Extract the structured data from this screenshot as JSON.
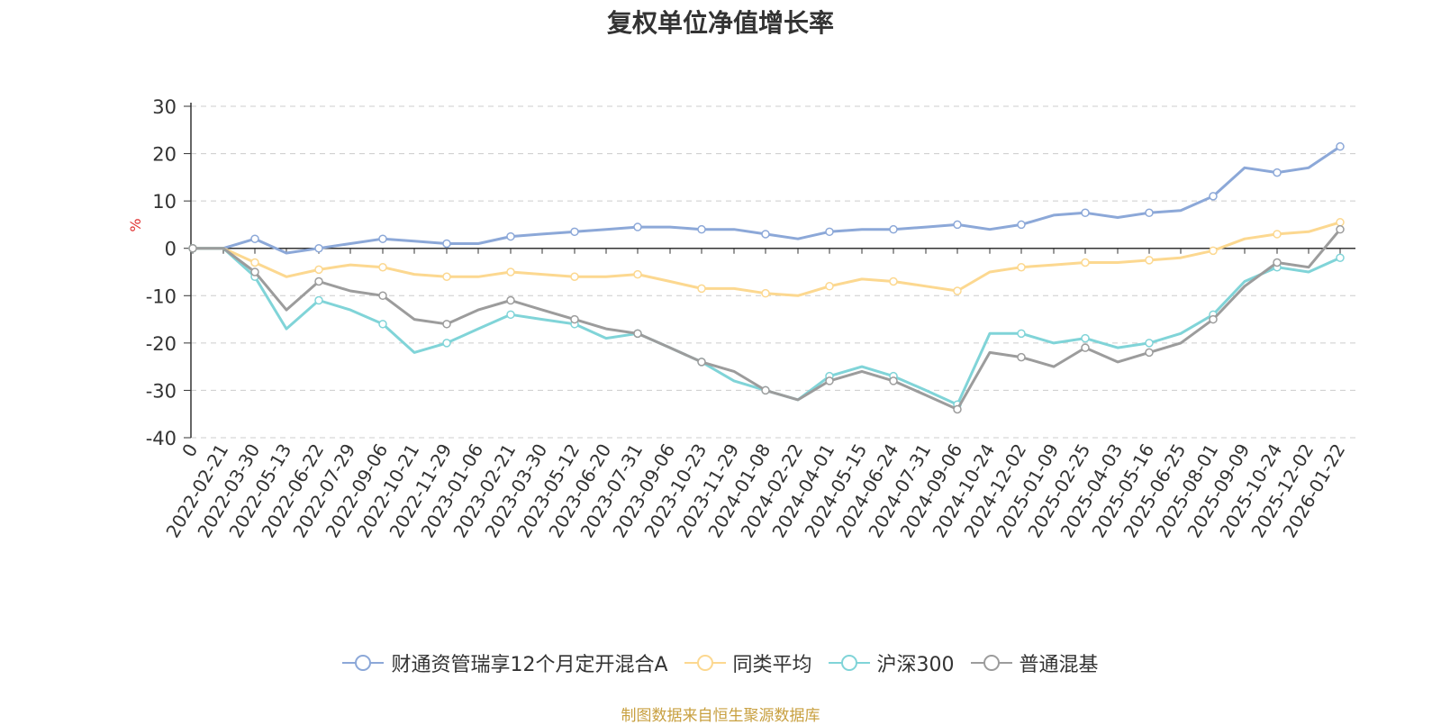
{
  "chart_data": {
    "type": "line",
    "title": "复权单位净值增长率",
    "ylabel": "%",
    "ylim": [
      -40,
      30
    ],
    "yticks": [
      30,
      20,
      10,
      0,
      -10,
      -20,
      -30,
      -40
    ],
    "x_origin_label": "0",
    "categories": [
      "2022-02-21",
      "2022-03-30",
      "2022-05-13",
      "2022-06-22",
      "2022-07-29",
      "2022-09-06",
      "2022-10-21",
      "2022-11-29",
      "2023-01-06",
      "2023-02-21",
      "2023-03-30",
      "2023-05-12",
      "2023-06-20",
      "2023-07-31",
      "2023-09-06",
      "2023-10-23",
      "2023-11-29",
      "2024-01-08",
      "2024-02-22",
      "2024-04-01",
      "2024-05-15",
      "2024-06-24",
      "2024-07-31",
      "2024-09-06",
      "2024-10-24",
      "2024-12-02",
      "2025-01-09",
      "2025-02-25",
      "2025-04-03",
      "2025-05-16",
      "2025-06-25",
      "2025-08-01",
      "2025-09-09",
      "2025-10-24",
      "2025-12-02",
      "2026-01-22"
    ],
    "series": [
      {
        "name": "财通资管瑞享12个月定开混合A",
        "color": "#8ca8d8",
        "values": [
          0,
          2,
          -1,
          0,
          1,
          2,
          1.5,
          1,
          1,
          2.5,
          3,
          3.5,
          4,
          4.5,
          4.5,
          4,
          4,
          3,
          2,
          3.5,
          4,
          4,
          4.5,
          5,
          4,
          5,
          7,
          7.5,
          6.5,
          7.5,
          8,
          11,
          17,
          16,
          17,
          21.5
        ]
      },
      {
        "name": "同类平均",
        "color": "#fcd890",
        "values": [
          0,
          -3,
          -6,
          -4.5,
          -3.5,
          -4,
          -5.5,
          -6,
          -6,
          -5,
          -5.5,
          -6,
          -6,
          -5.5,
          -7,
          -8.5,
          -8.5,
          -9.5,
          -10,
          -8,
          -6.5,
          -7,
          -8,
          -9,
          -5,
          -4,
          -3.5,
          -3,
          -3,
          -2.5,
          -2,
          -0.5,
          2,
          3,
          3.5,
          5.5
        ]
      },
      {
        "name": "沪深300",
        "color": "#80d4d8",
        "values": [
          0,
          -6,
          -17,
          -11,
          -13,
          -16,
          -22,
          -20,
          -17,
          -14,
          -15,
          -16,
          -19,
          -18,
          -21,
          -24,
          -28,
          -30,
          -32,
          -27,
          -25,
          -27,
          -30,
          -33,
          -18,
          -18,
          -20,
          -19,
          -21,
          -20,
          -18,
          -14,
          -7,
          -4,
          -5,
          -2
        ]
      },
      {
        "name": "普通混基",
        "color": "#9c9c9c",
        "values": [
          0,
          -5,
          -13,
          -7,
          -9,
          -10,
          -15,
          -16,
          -13,
          -11,
          -13,
          -15,
          -17,
          -18,
          -21,
          -24,
          -26,
          -30,
          -32,
          -28,
          -26,
          -28,
          -31,
          -34,
          -22,
          -23,
          -25,
          -21,
          -24,
          -22,
          -20,
          -15,
          -8,
          -3,
          -4,
          4
        ]
      }
    ]
  },
  "footer": {
    "source": "制图数据来自恒生聚源数据库"
  }
}
